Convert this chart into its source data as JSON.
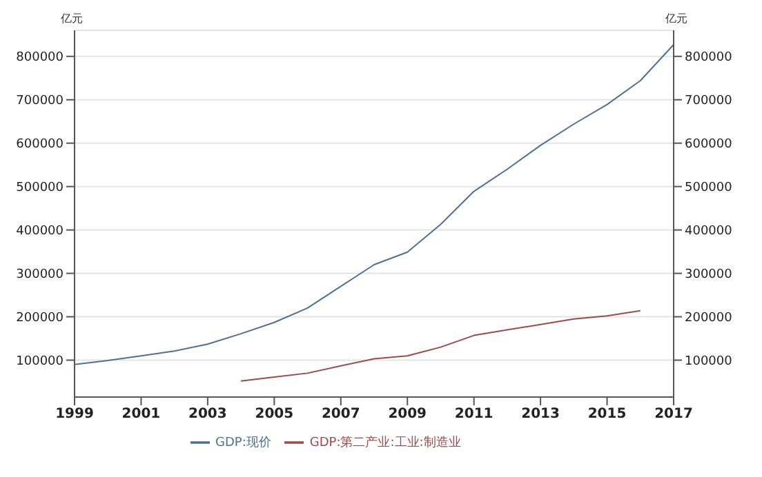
{
  "chart_data": {
    "type": "line",
    "ylabel": "亿元",
    "y2label": "亿元",
    "x": [
      1999,
      2000,
      2001,
      2002,
      2003,
      2004,
      2005,
      2006,
      2007,
      2008,
      2009,
      2010,
      2011,
      2012,
      2013,
      2014,
      2015,
      2016,
      2017
    ],
    "series": [
      {
        "name": "GDP:现价",
        "color": "#4a7098",
        "values": [
          90000,
          99000,
          110000,
          121000,
          137000,
          161000,
          187000,
          220000,
          270000,
          320000,
          349000,
          413000,
          489000,
          540000,
          595000,
          644000,
          689000,
          744000,
          827000
        ]
      },
      {
        "name": "GDP:第二产业:工业:制造业",
        "color": "#a04848",
        "values": [
          null,
          null,
          null,
          null,
          null,
          52000,
          61000,
          70000,
          87000,
          103000,
          110000,
          130000,
          157000,
          170000,
          182000,
          195000,
          202000,
          214000,
          null
        ]
      }
    ],
    "xlim": [
      1999,
      2017
    ],
    "xticks": [
      1999,
      2001,
      2003,
      2005,
      2007,
      2009,
      2011,
      2013,
      2015,
      2017
    ],
    "ylim": [
      15000,
      860000
    ],
    "yticks": [
      100000,
      200000,
      300000,
      400000,
      500000,
      600000,
      700000,
      800000
    ],
    "y2lim": [
      15000,
      860000
    ],
    "y2ticks": [
      100000,
      200000,
      300000,
      400000,
      500000,
      600000,
      700000,
      800000
    ],
    "grid": "y",
    "legend": "bottom",
    "marker": "none",
    "line_style": "solid"
  }
}
